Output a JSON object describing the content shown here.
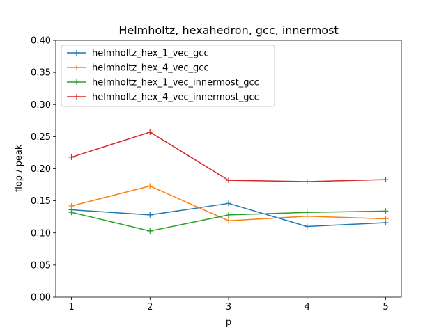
{
  "chart_data": {
    "type": "line",
    "title": "Helmholtz, hexahedron, gcc, innermost",
    "xlabel": "p",
    "ylabel": "flop / peak",
    "x": [
      1,
      2,
      3,
      4,
      5
    ],
    "xticks": [
      "1",
      "2",
      "3",
      "4",
      "5"
    ],
    "xlim": [
      0.8,
      5.2
    ],
    "ylim": [
      0.0,
      0.4
    ],
    "yticks": [
      "0.00",
      "0.05",
      "0.10",
      "0.15",
      "0.20",
      "0.25",
      "0.30",
      "0.35",
      "0.40"
    ],
    "grid": false,
    "legend_position": "top-left",
    "marker": "+",
    "series": [
      {
        "name": "helmholtz_hex_1_vec_gcc",
        "color": "#1f77b4",
        "values": [
          0.136,
          0.128,
          0.146,
          0.11,
          0.116
        ]
      },
      {
        "name": "helmholtz_hex_4_vec_gcc",
        "color": "#ff7f0e",
        "values": [
          0.142,
          0.173,
          0.119,
          0.126,
          0.122
        ]
      },
      {
        "name": "helmholtz_hex_1_vec_innermost_gcc",
        "color": "#2ca02c",
        "values": [
          0.132,
          0.103,
          0.128,
          0.132,
          0.134
        ]
      },
      {
        "name": "helmholtz_hex_4_vec_innermost_gcc",
        "color": "#d62728",
        "values": [
          0.218,
          0.257,
          0.182,
          0.18,
          0.183
        ]
      }
    ]
  }
}
